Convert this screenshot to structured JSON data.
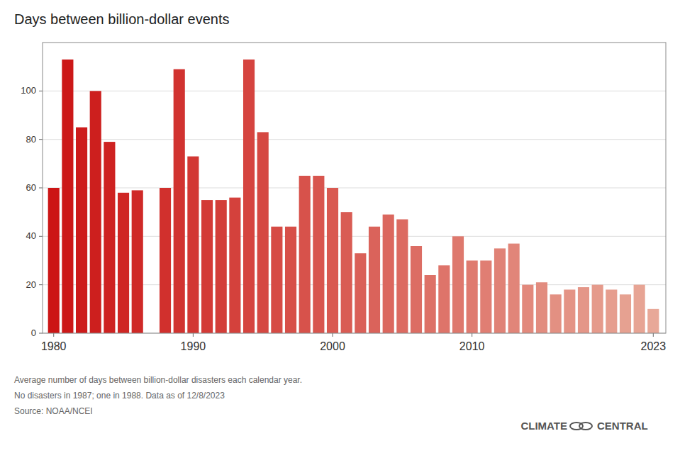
{
  "chart_data": {
    "type": "bar",
    "title": "Days between billion-dollar events",
    "x": [
      1980,
      1981,
      1982,
      1983,
      1984,
      1985,
      1986,
      1988,
      1989,
      1990,
      1991,
      1992,
      1993,
      1994,
      1995,
      1996,
      1997,
      1998,
      1999,
      2000,
      2001,
      2002,
      2003,
      2004,
      2005,
      2006,
      2007,
      2008,
      2009,
      2010,
      2011,
      2012,
      2013,
      2014,
      2015,
      2016,
      2017,
      2018,
      2019,
      2020,
      2021,
      2022,
      2023
    ],
    "values": [
      60,
      113,
      85,
      100,
      79,
      58,
      59,
      60,
      109,
      73,
      55,
      55,
      56,
      113,
      83,
      44,
      44,
      65,
      65,
      60,
      50,
      33,
      44,
      49,
      47,
      36,
      24,
      28,
      40,
      30,
      30,
      35,
      37,
      20,
      21,
      16,
      18,
      19,
      20,
      18,
      16,
      20,
      10
    ],
    "colors": [
      "#cc1515",
      "#cc1818",
      "#cd1b1b",
      "#cd1f1e",
      "#ce2221",
      "#cf2624",
      "#cf2927",
      "#d1302d",
      "#d13330",
      "#d23733",
      "#d33a36",
      "#d33e39",
      "#d4413c",
      "#d5443f",
      "#d54842",
      "#d64b45",
      "#d74f48",
      "#d7524b",
      "#d8554e",
      "#d95951",
      "#d95c54",
      "#da6058",
      "#da635b",
      "#db675e",
      "#dc6a61",
      "#dc6d64",
      "#dd7167",
      "#de746a",
      "#de786d",
      "#df7b70",
      "#e07e73",
      "#e08276",
      "#e18579",
      "#e2897c",
      "#e28c7f",
      "#e39082",
      "#e49385",
      "#e49688",
      "#e59a8b",
      "#e69d8e",
      "#e6a191",
      "#e7a494",
      "#e8a898"
    ],
    "xlim": [
      1979.2,
      2023.9
    ],
    "xticks": [
      1980,
      1990,
      2000,
      2010,
      2023
    ],
    "ylim": [
      0,
      120
    ],
    "yticks": [
      0,
      20,
      40,
      60,
      80,
      100
    ],
    "grid": true,
    "annotations": [
      "Average number of days between billion-dollar disasters each calendar year.",
      "No disasters in 1987; one in 1988. Data as of 12/8/2023",
      "Source: NOAA/NCEI",
      "CLIMATE",
      "CENTRAL"
    ]
  }
}
